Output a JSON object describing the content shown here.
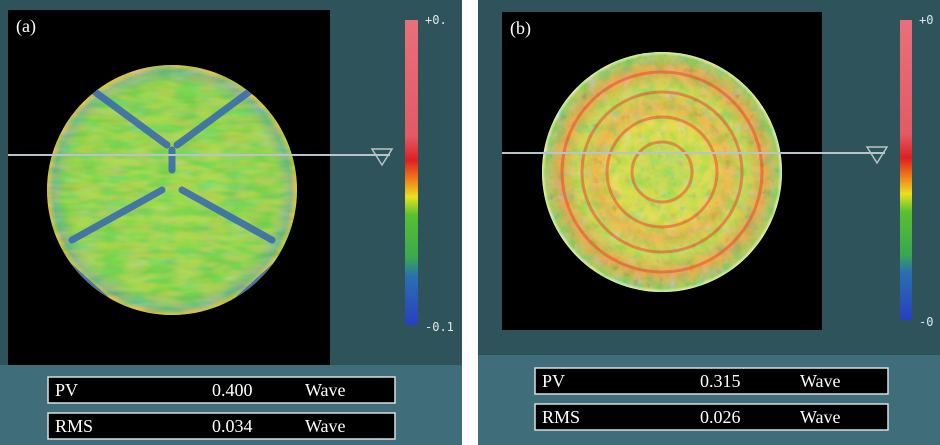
{
  "panels": [
    {
      "label": "(a)",
      "scale_max": "+0.",
      "scale_min": "-0.1",
      "rows": [
        [
          "PV",
          "0.400",
          "Wave"
        ],
        [
          "RMS",
          "0.034",
          "Wave"
        ]
      ]
    },
    {
      "label": "(b)",
      "scale_max": "+0",
      "scale_min": "-0",
      "rows": [
        [
          "PV",
          "0.315",
          "Wave"
        ],
        [
          "RMS",
          "0.026",
          "Wave"
        ]
      ]
    }
  ]
}
